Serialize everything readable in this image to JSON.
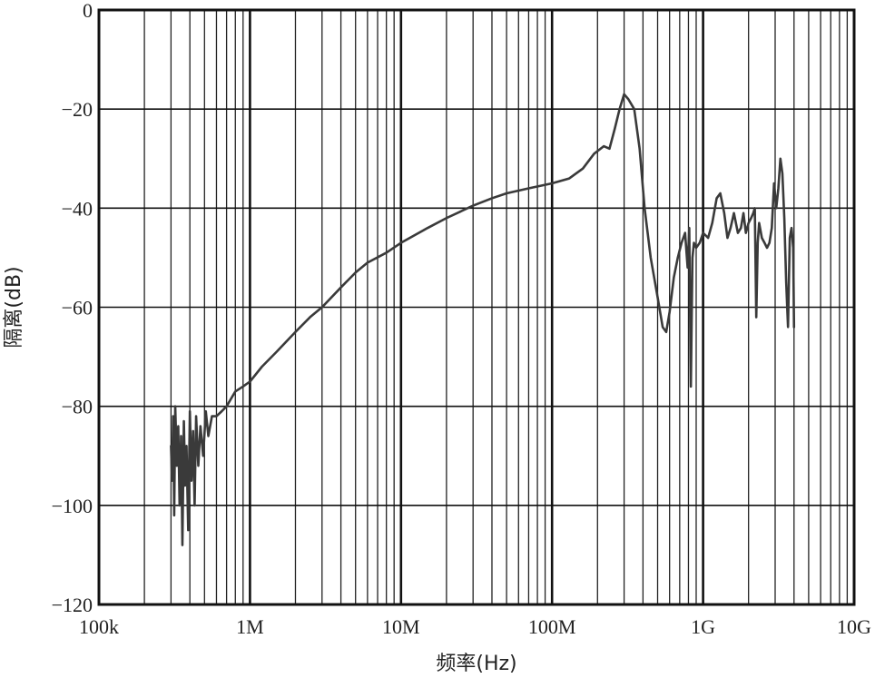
{
  "chart_data": {
    "type": "line",
    "title": "",
    "xlabel": "频率(Hz)",
    "ylabel": "隔离(dB)",
    "x_scale": "log",
    "xlim": [
      100000,
      10000000000
    ],
    "ylim": [
      -120,
      0
    ],
    "grid": true,
    "legend": "none",
    "line_color": "#3a3a3a",
    "x_ticks": [
      {
        "value": 100000,
        "label": "100k"
      },
      {
        "value": 1000000,
        "label": "1M"
      },
      {
        "value": 10000000,
        "label": "10M"
      },
      {
        "value": 100000000,
        "label": "100M"
      },
      {
        "value": 1000000000,
        "label": "1G"
      },
      {
        "value": 10000000000,
        "label": "10G"
      }
    ],
    "y_ticks": [
      {
        "value": 0,
        "label": "0"
      },
      {
        "value": -20,
        "label": "−20"
      },
      {
        "value": -40,
        "label": "−40"
      },
      {
        "value": -60,
        "label": "−60"
      },
      {
        "value": -80,
        "label": "−80"
      },
      {
        "value": -100,
        "label": "−100"
      },
      {
        "value": -120,
        "label": "−120"
      }
    ],
    "series": [
      {
        "x": [
          300000,
          305000,
          310000,
          315000,
          320000,
          328000,
          335000,
          342000,
          350000,
          357000,
          365000,
          372000,
          380000,
          390000,
          400000,
          410000,
          420000,
          430000,
          440000,
          455000,
          470000,
          490000,
          510000,
          530000,
          560000,
          600000,
          650000,
          700000,
          800000,
          900000,
          1000000,
          1200000,
          1500000,
          2000000,
          2500000,
          3000000,
          4000000,
          5000000,
          6000000,
          8000000,
          10000000,
          15000000,
          20000000,
          30000000,
          40000000,
          50000000,
          70000000,
          100000000,
          130000000,
          160000000,
          190000000,
          220000000,
          240000000,
          260000000,
          280000000,
          300000000,
          320000000,
          350000000,
          380000000,
          410000000,
          450000000,
          500000000,
          540000000,
          570000000,
          600000000,
          640000000,
          680000000,
          720000000,
          760000000,
          790000000,
          810000000,
          830000000,
          850000000,
          870000000,
          900000000,
          950000000,
          1000000000,
          1080000000,
          1150000000,
          1230000000,
          1300000000,
          1380000000,
          1450000000,
          1520000000,
          1600000000,
          1700000000,
          1780000000,
          1850000000,
          1920000000,
          2000000000,
          2080000000,
          2150000000,
          2200000000,
          2250000000,
          2300000000,
          2350000000,
          2450000000,
          2550000000,
          2650000000,
          2750000000,
          2850000000,
          2950000000,
          3050000000,
          3150000000,
          3250000000,
          3350000000,
          3450000000,
          3550000000,
          3650000000,
          3750000000,
          3850000000,
          3950000000,
          4000000000
        ],
        "values": [
          -88,
          -95,
          -82,
          -102,
          -80,
          -92,
          -84,
          -100,
          -86,
          -108,
          -83,
          -96,
          -88,
          -105,
          -81,
          -95,
          -85,
          -100,
          -82,
          -92,
          -84,
          -90,
          -81,
          -86,
          -82,
          -82,
          -81,
          -80,
          -77,
          -76,
          -75,
          -72,
          -69,
          -65,
          -62,
          -60,
          -56,
          -53,
          -51,
          -49,
          -47,
          -44,
          -42,
          -39.5,
          -38,
          -37,
          -36,
          -35,
          -34,
          -32,
          -29,
          -27.5,
          -28,
          -24,
          -20,
          -17,
          -18,
          -20,
          -28,
          -40,
          -50,
          -58,
          -64,
          -65,
          -61,
          -54,
          -50,
          -47,
          -45,
          -52,
          -44,
          -76,
          -50,
          -47,
          -48,
          -47,
          -45,
          -46,
          -43,
          -38,
          -37,
          -41,
          -46,
          -44,
          -41,
          -45,
          -44,
          -41,
          -45,
          -43,
          -42,
          -41,
          -40,
          -62,
          -47,
          -43,
          -46,
          -47,
          -48,
          -47,
          -44,
          -35,
          -40,
          -36,
          -30,
          -33,
          -42,
          -55,
          -64,
          -46,
          -44,
          -48,
          -64
        ]
      }
    ]
  }
}
